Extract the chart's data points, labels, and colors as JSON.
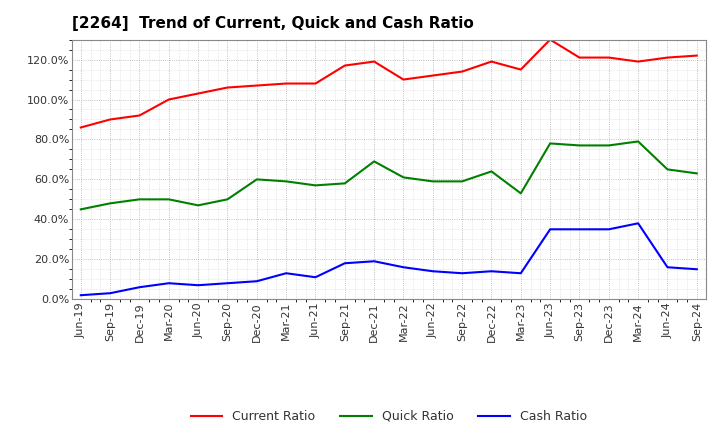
{
  "title": "[2264]  Trend of Current, Quick and Cash Ratio",
  "x_labels": [
    "Jun-19",
    "Sep-19",
    "Dec-19",
    "Mar-20",
    "Jun-20",
    "Sep-20",
    "Dec-20",
    "Mar-21",
    "Jun-21",
    "Sep-21",
    "Dec-21",
    "Mar-22",
    "Jun-22",
    "Sep-22",
    "Dec-22",
    "Mar-23",
    "Jun-23",
    "Sep-23",
    "Dec-23",
    "Mar-24",
    "Jun-24",
    "Sep-24"
  ],
  "current_ratio": [
    86,
    90,
    92,
    100,
    103,
    106,
    107,
    108,
    108,
    117,
    119,
    110,
    112,
    114,
    119,
    115,
    130,
    121,
    121,
    119,
    121,
    122
  ],
  "quick_ratio": [
    45,
    48,
    50,
    50,
    47,
    50,
    60,
    59,
    57,
    58,
    69,
    61,
    59,
    59,
    64,
    53,
    78,
    77,
    77,
    79,
    65,
    63
  ],
  "cash_ratio": [
    2,
    3,
    6,
    8,
    7,
    8,
    9,
    13,
    11,
    18,
    19,
    16,
    14,
    13,
    14,
    13,
    35,
    35,
    35,
    38,
    16,
    15
  ],
  "current_color": "#FF0000",
  "quick_color": "#008000",
  "cash_color": "#0000FF",
  "background_color": "#FFFFFF",
  "plot_bg_color": "#FFFFFF",
  "grid_color": "#999999",
  "ylim": [
    0,
    130
  ],
  "yticks": [
    0,
    20,
    40,
    60,
    80,
    100,
    120
  ],
  "title_fontsize": 11,
  "tick_fontsize": 8,
  "legend_fontsize": 9
}
